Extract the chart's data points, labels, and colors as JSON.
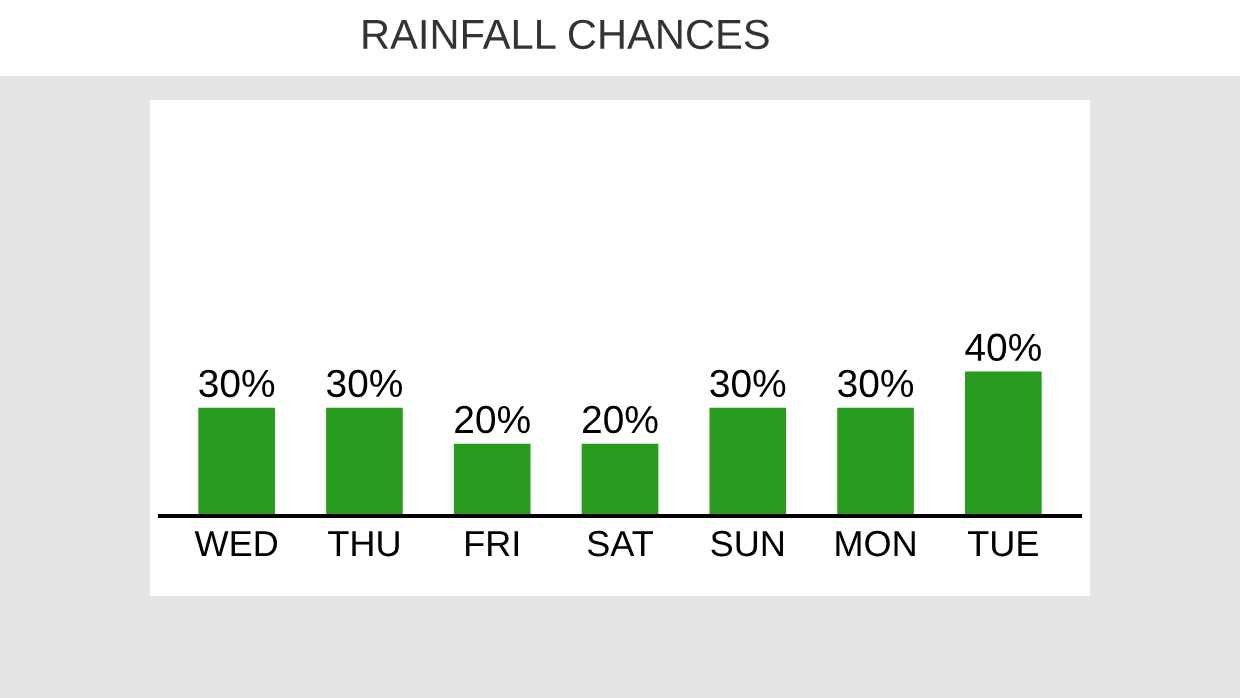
{
  "chart_data": {
    "type": "bar",
    "title": "RAINFALL CHANCES",
    "categories": [
      "WED",
      "THU",
      "FRI",
      "SAT",
      "SUN",
      "MON",
      "TUE"
    ],
    "values": [
      30,
      30,
      20,
      20,
      30,
      30,
      40
    ],
    "value_labels": [
      "30%",
      "30%",
      "20%",
      "20%",
      "30%",
      "30%",
      "40%"
    ],
    "color": "#299b1f",
    "grid": false,
    "legend": false
  }
}
